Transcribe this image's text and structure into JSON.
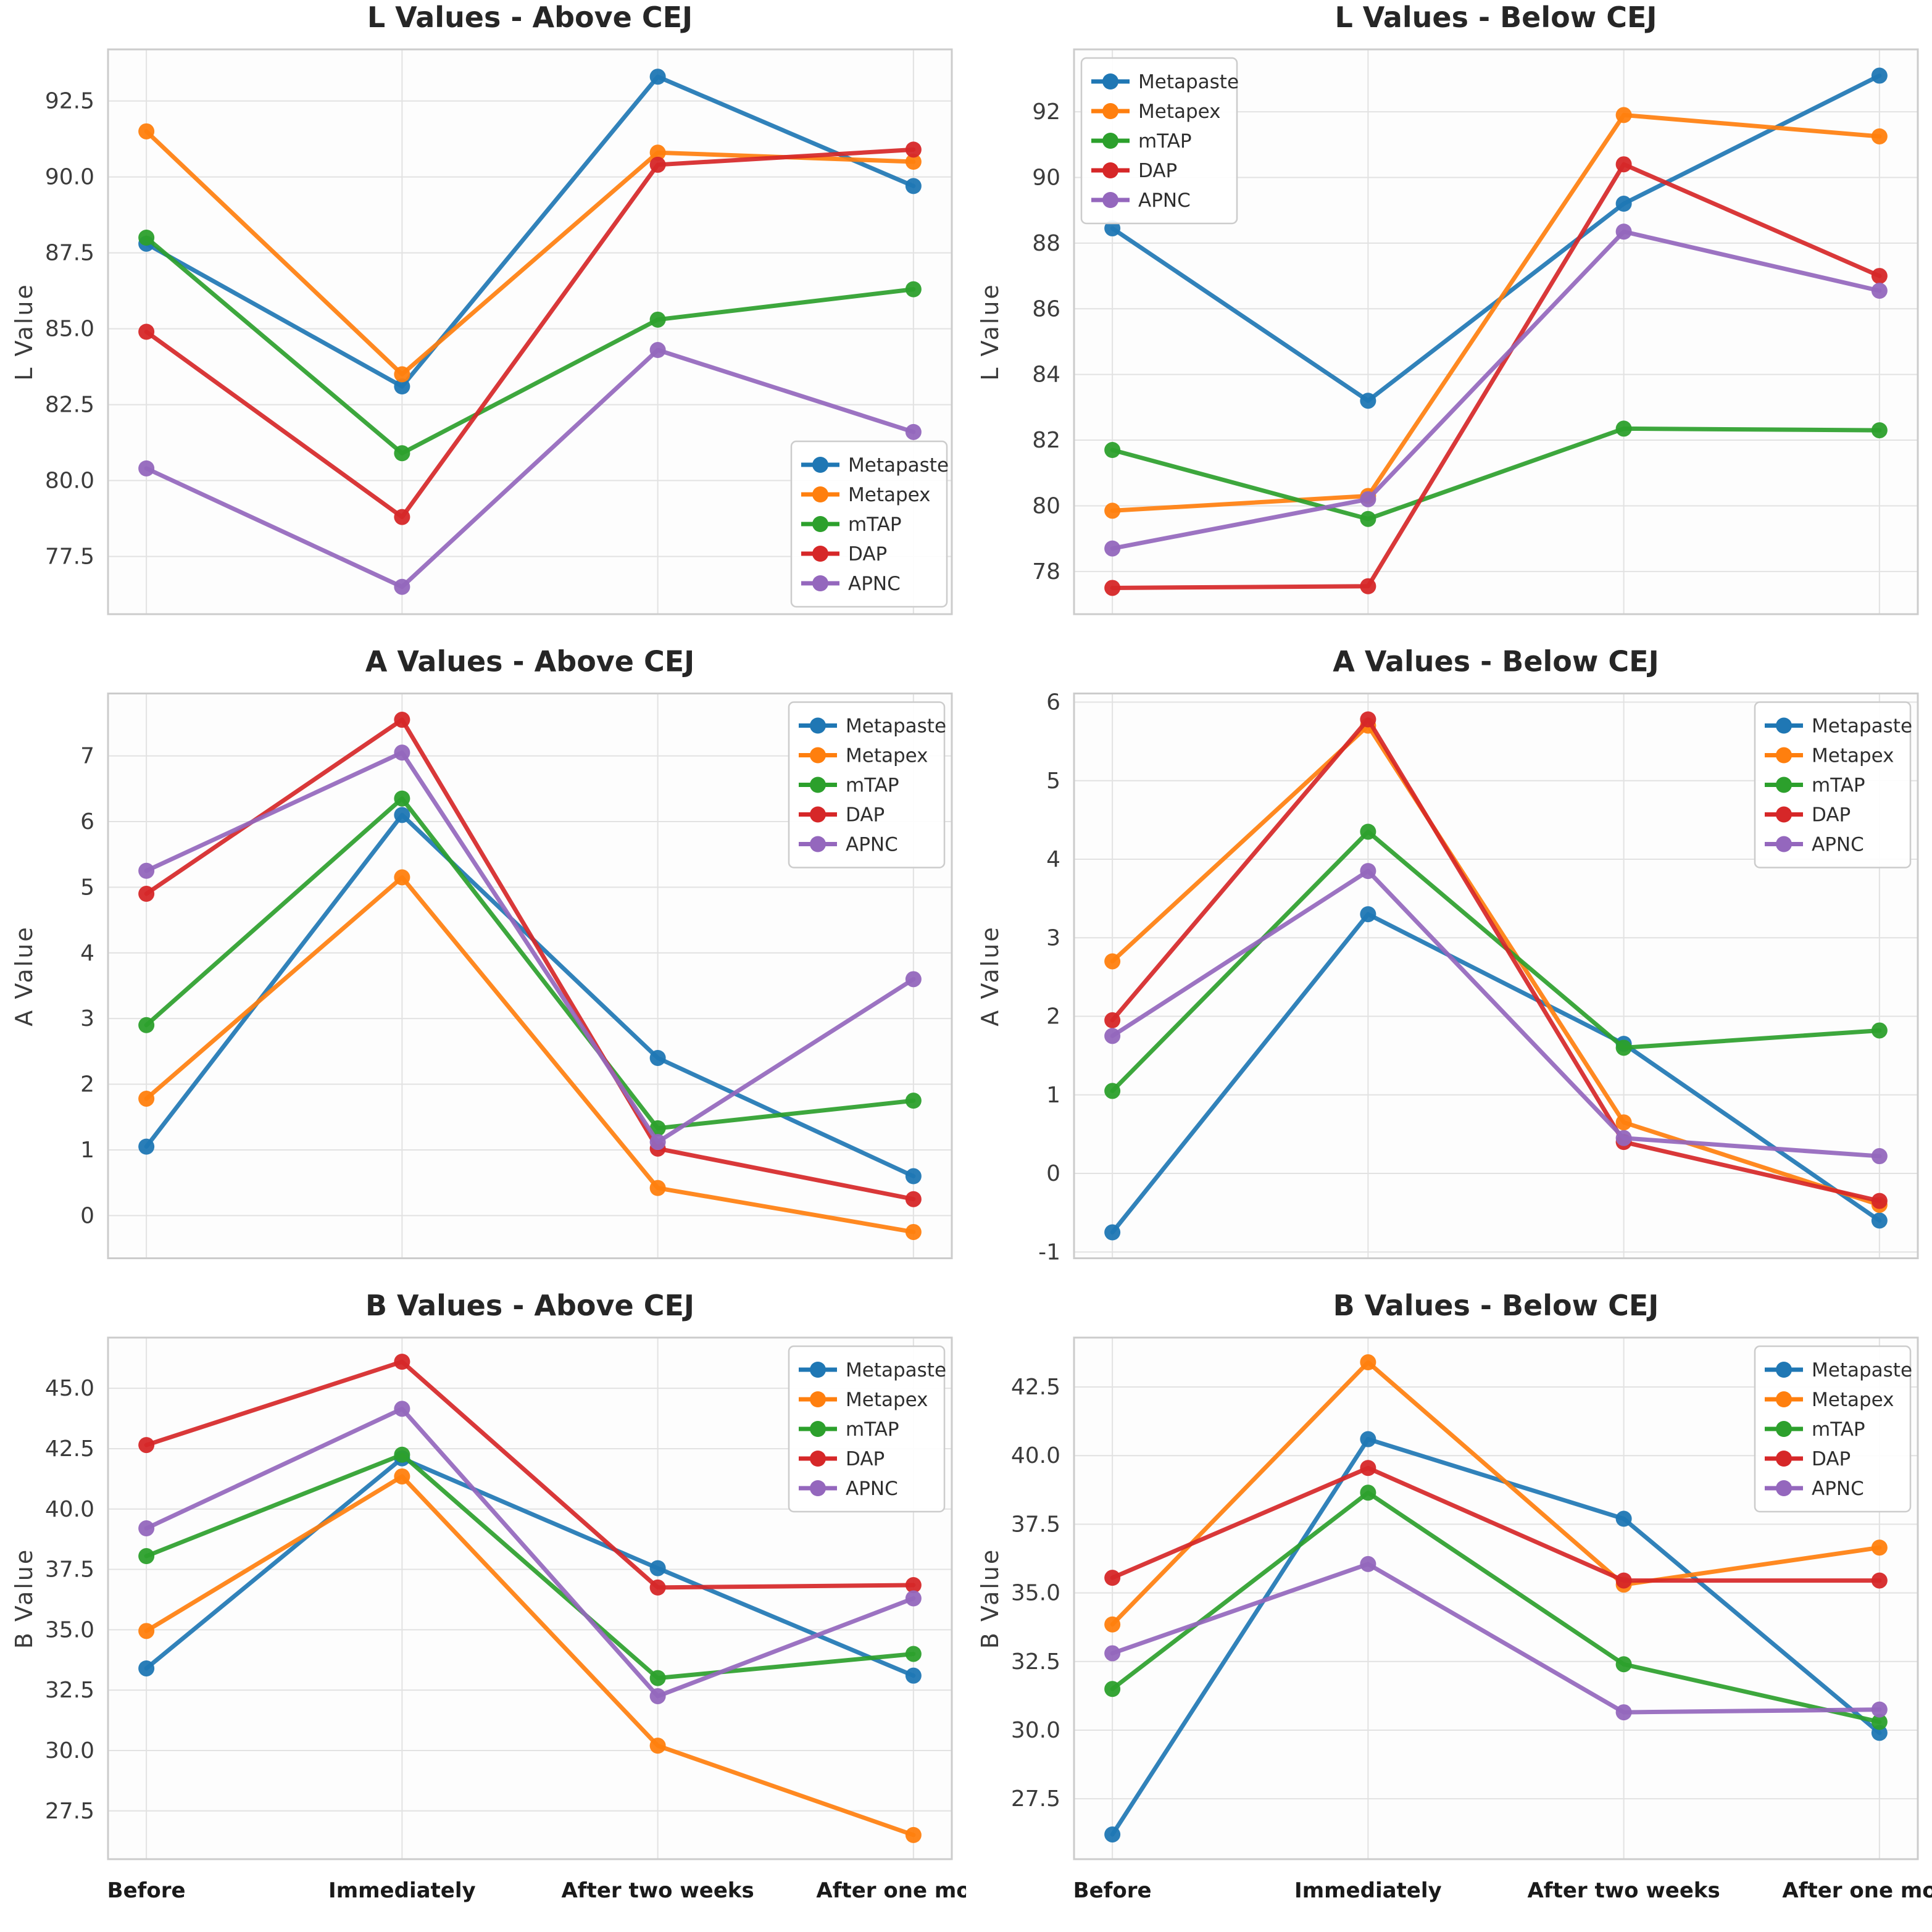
{
  "figure": {
    "series_names": [
      "Metapaste",
      "Metapex",
      "mTAP",
      "DAP",
      "APNC"
    ],
    "series_colors": [
      "#1f77b4",
      "#ff7f0e",
      "#2ca02c",
      "#d62728",
      "#9467bd"
    ],
    "x_categories": [
      "Before",
      "Immediately",
      "After two weeks",
      "After one month"
    ],
    "grid_color": "#e2e2e2",
    "axes_border_color": "#cccccc",
    "background_color": "#ffffff"
  },
  "chart_data": [
    {
      "type": "line",
      "title": "L Values - Above CEJ",
      "ylabel": "L Value",
      "categories": [
        "Before",
        "Immediately",
        "After two weeks",
        "After one month"
      ],
      "yticks": [
        "77.5",
        "80.0",
        "82.5",
        "85.0",
        "87.5",
        "90.0",
        "92.5"
      ],
      "ylim": [
        75.6,
        94.2
      ],
      "grid": true,
      "legend_position": "lower-right",
      "show_x_labels": false,
      "series": [
        {
          "name": "Metapaste",
          "color": "#1f77b4",
          "values": [
            87.8,
            83.1,
            93.3,
            89.7
          ]
        },
        {
          "name": "Metapex",
          "color": "#ff7f0e",
          "values": [
            91.5,
            83.5,
            90.8,
            90.5
          ]
        },
        {
          "name": "mTAP",
          "color": "#2ca02c",
          "values": [
            88.0,
            80.9,
            85.3,
            86.3
          ]
        },
        {
          "name": "DAP",
          "color": "#d62728",
          "values": [
            84.9,
            78.8,
            90.4,
            90.9
          ]
        },
        {
          "name": "APNC",
          "color": "#9467bd",
          "values": [
            80.4,
            76.5,
            84.3,
            81.6
          ]
        }
      ]
    },
    {
      "type": "line",
      "title": "L Values - Below CEJ",
      "ylabel": "L Value",
      "categories": [
        "Before",
        "Immediately",
        "After two weeks",
        "After one month"
      ],
      "yticks": [
        "78",
        "80",
        "82",
        "84",
        "86",
        "88",
        "90",
        "92"
      ],
      "ylim": [
        76.7,
        93.9
      ],
      "grid": true,
      "legend_position": "upper-left",
      "show_x_labels": false,
      "series": [
        {
          "name": "Metapaste",
          "color": "#1f77b4",
          "values": [
            88.45,
            83.2,
            89.2,
            93.1
          ]
        },
        {
          "name": "Metapex",
          "color": "#ff7f0e",
          "values": [
            79.85,
            80.3,
            91.9,
            91.25
          ]
        },
        {
          "name": "mTAP",
          "color": "#2ca02c",
          "values": [
            81.7,
            79.6,
            82.35,
            82.3
          ]
        },
        {
          "name": "DAP",
          "color": "#d62728",
          "values": [
            77.5,
            77.55,
            90.4,
            87.0
          ]
        },
        {
          "name": "APNC",
          "color": "#9467bd",
          "values": [
            78.7,
            80.2,
            88.35,
            86.55
          ]
        }
      ]
    },
    {
      "type": "line",
      "title": "A Values - Above CEJ",
      "ylabel": "A Value",
      "categories": [
        "Before",
        "Immediately",
        "After two weeks",
        "After one month"
      ],
      "yticks": [
        "0",
        "1",
        "2",
        "3",
        "4",
        "5",
        "6",
        "7"
      ],
      "ylim": [
        -0.65,
        7.95
      ],
      "grid": true,
      "legend_position": "upper-right",
      "show_x_labels": false,
      "series": [
        {
          "name": "Metapaste",
          "color": "#1f77b4",
          "values": [
            1.05,
            6.1,
            2.4,
            0.6
          ]
        },
        {
          "name": "Metapex",
          "color": "#ff7f0e",
          "values": [
            1.78,
            5.15,
            0.42,
            -0.25
          ]
        },
        {
          "name": "mTAP",
          "color": "#2ca02c",
          "values": [
            2.9,
            6.35,
            1.33,
            1.75
          ]
        },
        {
          "name": "DAP",
          "color": "#d62728",
          "values": [
            4.9,
            7.55,
            1.02,
            0.25
          ]
        },
        {
          "name": "APNC",
          "color": "#9467bd",
          "values": [
            5.25,
            7.05,
            1.12,
            3.6
          ]
        }
      ]
    },
    {
      "type": "line",
      "title": "A Values - Below CEJ",
      "ylabel": "A Value",
      "categories": [
        "Before",
        "Immediately",
        "After two weeks",
        "After one month"
      ],
      "yticks": [
        "-1",
        "0",
        "1",
        "2",
        "3",
        "4",
        "5",
        "6"
      ],
      "ylim": [
        -1.08,
        6.11
      ],
      "grid": true,
      "legend_position": "upper-right",
      "show_x_labels": false,
      "series": [
        {
          "name": "Metapaste",
          "color": "#1f77b4",
          "values": [
            -0.75,
            3.3,
            1.65,
            -0.6
          ]
        },
        {
          "name": "Metapex",
          "color": "#ff7f0e",
          "values": [
            2.7,
            5.7,
            0.65,
            -0.4
          ]
        },
        {
          "name": "mTAP",
          "color": "#2ca02c",
          "values": [
            1.05,
            4.35,
            1.6,
            1.82
          ]
        },
        {
          "name": "DAP",
          "color": "#d62728",
          "values": [
            1.95,
            5.78,
            0.4,
            -0.35
          ]
        },
        {
          "name": "APNC",
          "color": "#9467bd",
          "values": [
            1.75,
            3.85,
            0.45,
            0.22
          ]
        }
      ]
    },
    {
      "type": "line",
      "title": "B Values - Above CEJ",
      "ylabel": "B Value",
      "categories": [
        "Before",
        "Immediately",
        "After two weeks",
        "After one month"
      ],
      "yticks": [
        "27.5",
        "30.0",
        "32.5",
        "35.0",
        "37.5",
        "40.0",
        "42.5",
        "45.0"
      ],
      "ylim": [
        25.5,
        47.1
      ],
      "grid": true,
      "legend_position": "upper-right",
      "show_x_labels": true,
      "series": [
        {
          "name": "Metapaste",
          "color": "#1f77b4",
          "values": [
            33.4,
            42.1,
            37.55,
            33.1
          ]
        },
        {
          "name": "Metapex",
          "color": "#ff7f0e",
          "values": [
            34.95,
            41.35,
            30.2,
            26.5
          ]
        },
        {
          "name": "mTAP",
          "color": "#2ca02c",
          "values": [
            38.05,
            42.25,
            33.0,
            34.0
          ]
        },
        {
          "name": "DAP",
          "color": "#d62728",
          "values": [
            42.65,
            46.1,
            36.75,
            36.85
          ]
        },
        {
          "name": "APNC",
          "color": "#9467bd",
          "values": [
            39.2,
            44.15,
            32.25,
            36.3
          ]
        }
      ]
    },
    {
      "type": "line",
      "title": "B Values - Below CEJ",
      "ylabel": "B Value",
      "categories": [
        "Before",
        "Immediately",
        "After two weeks",
        "After one month"
      ],
      "yticks": [
        "27.5",
        "30.0",
        "32.5",
        "35.0",
        "37.5",
        "40.0",
        "42.5"
      ],
      "ylim": [
        25.3,
        44.3
      ],
      "grid": true,
      "legend_position": "upper-right",
      "show_x_labels": true,
      "series": [
        {
          "name": "Metapaste",
          "color": "#1f77b4",
          "values": [
            26.2,
            40.6,
            37.7,
            29.9
          ]
        },
        {
          "name": "Metapex",
          "color": "#ff7f0e",
          "values": [
            33.85,
            43.4,
            35.3,
            36.65
          ]
        },
        {
          "name": "mTAP",
          "color": "#2ca02c",
          "values": [
            31.5,
            38.65,
            32.4,
            30.3
          ]
        },
        {
          "name": "DAP",
          "color": "#d62728",
          "values": [
            35.55,
            39.55,
            35.45,
            35.45
          ]
        },
        {
          "name": "APNC",
          "color": "#9467bd",
          "values": [
            32.8,
            36.05,
            30.65,
            30.75
          ]
        }
      ]
    }
  ]
}
